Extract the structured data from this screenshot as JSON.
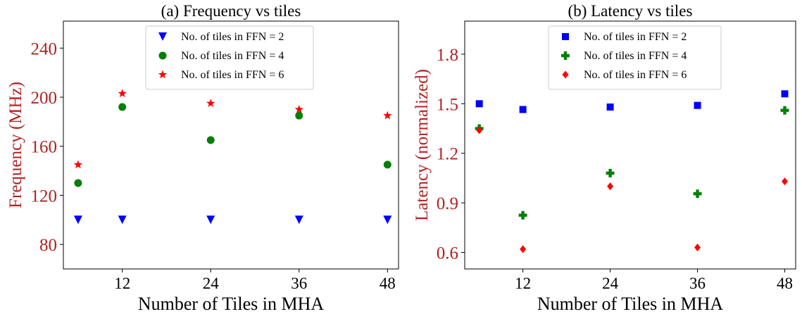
{
  "chart_data": [
    {
      "type": "scatter",
      "title": "(a) Frequency vs tiles",
      "xlabel": "Number of Tiles in MHA",
      "ylabel": "Frequency (MHz)",
      "xlim": [
        4,
        49.5
      ],
      "ylim": [
        60,
        262
      ],
      "xticks": [
        12,
        24,
        36,
        48
      ],
      "yticks": [
        80,
        120,
        160,
        200,
        240
      ],
      "ytick_labels": [
        "80",
        "120",
        "160",
        "200",
        "240"
      ],
      "ylabel_color": "#b22222",
      "legend_position": "top-center",
      "x": [
        6,
        12,
        24,
        36,
        48
      ],
      "series": [
        {
          "name": "No. of tiles in FFN = 2",
          "marker": "triangle-down",
          "color": "#0000ff",
          "values": [
            100,
            100,
            100,
            100,
            100
          ]
        },
        {
          "name": "No. of tiles in FFN = 4",
          "marker": "circle",
          "color": "#008000",
          "values": [
            130,
            192,
            165,
            185,
            145
          ]
        },
        {
          "name": "No. of tiles in FFN = 6",
          "marker": "star",
          "color": "#ff0000",
          "values": [
            145,
            203,
            195,
            190,
            185
          ]
        }
      ]
    },
    {
      "type": "scatter",
      "title": "(b) Latency vs tiles",
      "xlabel": "Number of Tiles in MHA",
      "ylabel": "Latency (normalized)",
      "xlim": [
        4,
        49.5
      ],
      "ylim": [
        0.5,
        2.0
      ],
      "xticks": [
        12,
        24,
        36,
        48
      ],
      "yticks": [
        0.6,
        0.9,
        1.2,
        1.5,
        1.8
      ],
      "ytick_labels": [
        "0.6",
        "0.9",
        "1.2",
        "1.5",
        "1.8"
      ],
      "ylabel_color": "#b22222",
      "legend_position": "top-center",
      "x": [
        6,
        12,
        24,
        36,
        48
      ],
      "series": [
        {
          "name": "No. of tiles in FFN  = 2",
          "marker": "square",
          "color": "#0000ff",
          "values": [
            1.5,
            1.465,
            1.48,
            1.49,
            1.56
          ]
        },
        {
          "name": "No. of tiles in FFN = 4",
          "marker": "plus",
          "color": "#008000",
          "values": [
            1.35,
            0.825,
            1.08,
            0.955,
            1.46
          ]
        },
        {
          "name": "No. of tiles in FFN = 6",
          "marker": "diamond",
          "color": "#ff0000",
          "values": [
            1.34,
            0.62,
            1.0,
            0.63,
            1.03
          ]
        }
      ]
    }
  ]
}
